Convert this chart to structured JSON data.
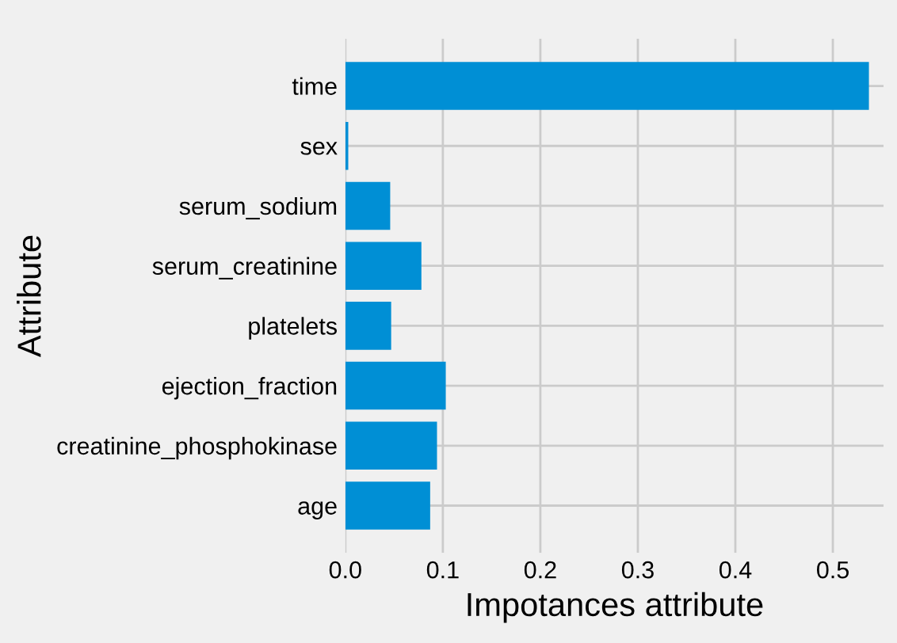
{
  "chart_data": {
    "type": "bar",
    "orientation": "horizontal",
    "xlabel": "Impotances attribute",
    "ylabel": "Attribute",
    "categories": [
      "time",
      "sex",
      "serum_sodium",
      "serum_creatinine",
      "platelets",
      "ejection_fraction",
      "creatinine_phosphokinase",
      "age"
    ],
    "values": [
      0.537,
      0.003,
      0.046,
      0.078,
      0.047,
      0.103,
      0.094,
      0.087
    ],
    "color": "#008fd5",
    "xlim": [
      0,
      0.552
    ],
    "xticks": [
      {
        "value": 0,
        "label": "0.0"
      },
      0.1,
      0.2,
      0.3,
      0.4,
      0.5
    ],
    "grid": true
  }
}
